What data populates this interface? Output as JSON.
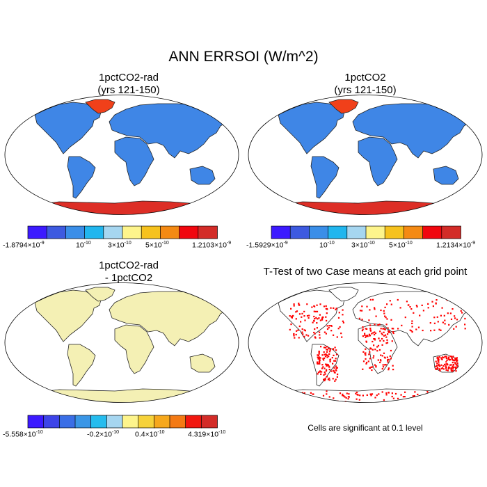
{
  "title": "ANN ERRSOI (W/m^2)",
  "panels": {
    "p1": {
      "title1": "1pctCO2-rad",
      "title2": "(yrs 121-150)"
    },
    "p2": {
      "title1": "1pctCO2",
      "title2": "(yrs 121-150)"
    },
    "p3": {
      "title1": "1pctCO2-rad",
      "title2": "- 1pctCO2"
    },
    "p4": {
      "title1": "T-Test of two Case means at each grid point"
    }
  },
  "colorbars": {
    "cb1": {
      "colors": [
        "#3c1aff",
        "#3d5ae0",
        "#3a8ee8",
        "#21b6ee",
        "#a6d6f0",
        "#fdf48c",
        "#f6c21e",
        "#f48a14",
        "#f1070f",
        "#d32c28"
      ],
      "labels": [
        {
          "mant": "-1.8794×10",
          "exp": "-9"
        },
        {
          "mant": "10",
          "exp": "-10"
        },
        {
          "mant": "3×10",
          "exp": "-10"
        },
        {
          "mant": "5×10",
          "exp": "-10"
        },
        {
          "mant": "1.2103×10",
          "exp": "-9"
        }
      ]
    },
    "cb2": {
      "colors": [
        "#3c1aff",
        "#3d5ae0",
        "#3a8ee8",
        "#21b6ee",
        "#a6d6f0",
        "#fdf48c",
        "#f6c21e",
        "#f48a14",
        "#f1070f",
        "#d32c28"
      ],
      "labels": [
        {
          "mant": "-1.5929×10",
          "exp": "-9"
        },
        {
          "mant": "10",
          "exp": "-10"
        },
        {
          "mant": "3×10",
          "exp": "-10"
        },
        {
          "mant": "5×10",
          "exp": "-10"
        },
        {
          "mant": "1.2134×10",
          "exp": "-9"
        }
      ]
    },
    "cb3": {
      "colors": [
        "#3c1aff",
        "#3d44e8",
        "#3a6ee6",
        "#3a96e6",
        "#25bcee",
        "#a6d6f0",
        "#fdf48c",
        "#f6d23a",
        "#f6a81c",
        "#f47a14",
        "#f1170f",
        "#d32c28"
      ],
      "labels": [
        {
          "mant": "-5.558×10",
          "exp": "-10"
        },
        {
          "mant": "-0.2×10",
          "exp": "-10"
        },
        {
          "mant": "0.4×10",
          "exp": "-10"
        },
        {
          "mant": "4.319×10",
          "exp": "-10"
        }
      ]
    }
  },
  "note": "Cells are significant at 0.1 level",
  "map_colors": {
    "ocean": "#ffffff",
    "land_p1": "#3f86e6",
    "land_p3": "#f4f0b4",
    "greenland": "#f0401a",
    "antarctica": "#dd2e26",
    "ttest": "#ff0000"
  }
}
